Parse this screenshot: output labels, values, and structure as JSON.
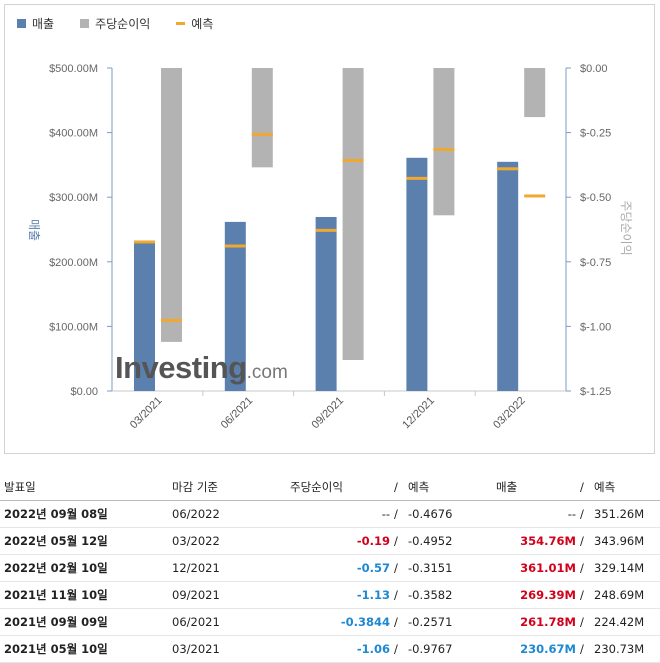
{
  "legend": {
    "items": [
      {
        "label": "매출",
        "color": "#5b80ad",
        "kind": "box"
      },
      {
        "label": "주당순이익",
        "color": "#b3b3b3",
        "kind": "box"
      },
      {
        "label": "예측",
        "color": "#f0a830",
        "kind": "line"
      }
    ]
  },
  "logo": {
    "text_main": "Investing",
    "text_suffix": ".com"
  },
  "chart_data": {
    "type": "bar",
    "categories": [
      "03/2021",
      "06/2021",
      "09/2021",
      "12/2021",
      "03/2022"
    ],
    "left_axis": {
      "label": "매출",
      "range": [
        0,
        500
      ],
      "ticks": [
        "$0.00",
        "$100.00M",
        "$200.00M",
        "$300.00M",
        "$400.00M",
        "$500.00M"
      ]
    },
    "right_axis": {
      "label": "주당순이익",
      "range": [
        -1.25,
        0
      ],
      "ticks": [
        "$-1.25",
        "$-1.00",
        "$-0.75",
        "$-0.50",
        "$-0.25",
        "$0.00"
      ]
    },
    "series": [
      {
        "name": "매출",
        "axis": "left",
        "values": [
          230.67,
          261.78,
          269.39,
          361.01,
          354.76
        ],
        "forecast": [
          230.73,
          224.42,
          248.69,
          329.14,
          343.96
        ],
        "color": "#5b80ad"
      },
      {
        "name": "주당순이익",
        "axis": "right",
        "values": [
          -1.06,
          -0.3844,
          -1.13,
          -0.57,
          -0.19
        ],
        "forecast": [
          -0.9767,
          -0.2571,
          -0.3582,
          -0.3151,
          -0.4952
        ],
        "color": "#b3b3b3"
      }
    ],
    "forecast_color": "#f0a830",
    "grid": false
  },
  "table": {
    "headers": {
      "date": "발표일",
      "period": "마감 기준",
      "eps": "주당순이익",
      "eps_forecast": "예측",
      "revenue": "매출",
      "revenue_forecast": "예측",
      "slash": "/"
    },
    "rows": [
      {
        "date": "2022년 09월 08일",
        "period": "06/2022",
        "eps": "--",
        "eps_color": "plain",
        "eps_forecast": "-0.4676",
        "revenue": "--",
        "rev_color": "plain",
        "revenue_forecast": "351.26M"
      },
      {
        "date": "2022년 05월 12일",
        "period": "03/2022",
        "eps": "-0.19",
        "eps_color": "red",
        "eps_forecast": "-0.4952",
        "revenue": "354.76M",
        "rev_color": "red",
        "revenue_forecast": "343.96M"
      },
      {
        "date": "2022년 02월 10일",
        "period": "12/2021",
        "eps": "-0.57",
        "eps_color": "blue",
        "eps_forecast": "-0.3151",
        "revenue": "361.01M",
        "rev_color": "red",
        "revenue_forecast": "329.14M"
      },
      {
        "date": "2021년 11월 10일",
        "period": "09/2021",
        "eps": "-1.13",
        "eps_color": "blue",
        "eps_forecast": "-0.3582",
        "revenue": "269.39M",
        "rev_color": "red",
        "revenue_forecast": "248.69M"
      },
      {
        "date": "2021년 09월 09일",
        "period": "06/2021",
        "eps": "-0.3844",
        "eps_color": "blue",
        "eps_forecast": "-0.2571",
        "revenue": "261.78M",
        "rev_color": "red",
        "revenue_forecast": "224.42M"
      },
      {
        "date": "2021년 05월 10일",
        "period": "03/2021",
        "eps": "-1.06",
        "eps_color": "blue",
        "eps_forecast": "-0.9767",
        "revenue": "230.67M",
        "rev_color": "blue",
        "revenue_forecast": "230.73M"
      }
    ]
  }
}
